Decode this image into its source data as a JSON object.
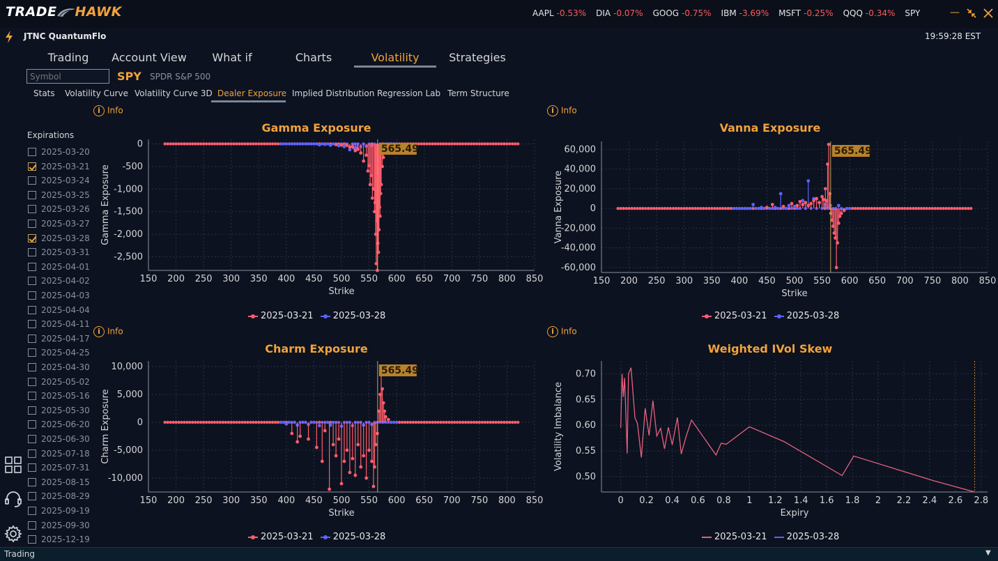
{
  "app": {
    "logo_part1": "TRADE",
    "logo_part2": "HAWK",
    "account": "JTNC QuantumFlo",
    "clock": "19:59:28 EST",
    "colors": {
      "accent": "#f2a23a",
      "negative": "#ff5a5a",
      "series1": "#ff5c6c",
      "series2": "#5b63ff",
      "background": "#0c1220"
    }
  },
  "tickers": [
    {
      "symbol": "AAPL",
      "change": "-0.53%"
    },
    {
      "symbol": "DIA",
      "change": "-0.07%"
    },
    {
      "symbol": "GOOG",
      "change": "-0.75%"
    },
    {
      "symbol": "IBM",
      "change": "-3.69%"
    },
    {
      "symbol": "MSFT",
      "change": "-0.25%"
    },
    {
      "symbol": "QQQ",
      "change": "-0.34%"
    },
    {
      "symbol": "SPY",
      "change": ""
    }
  ],
  "main_tabs": [
    "Trading",
    "Account View",
    "What if",
    "Charts",
    "Volatility",
    "Strategies"
  ],
  "main_tab_active": "Volatility",
  "symbol_bar": {
    "placeholder": "Symbol",
    "ticker": "SPY",
    "name": "SPDR S&P 500"
  },
  "sub_tabs": [
    "Stats",
    "Volatility Curve",
    "Volatility Curve 3D",
    "Dealer Exposure",
    "Implied Distribution",
    "Regression Lab",
    "Term Structure"
  ],
  "sub_tab_active": "Dealer Exposure",
  "expirations": {
    "title": "Expirations",
    "items": [
      {
        "date": "2025-03-20",
        "checked": false
      },
      {
        "date": "2025-03-21",
        "checked": true
      },
      {
        "date": "2025-03-24",
        "checked": false
      },
      {
        "date": "2025-03-25",
        "checked": false
      },
      {
        "date": "2025-03-26",
        "checked": false
      },
      {
        "date": "2025-03-27",
        "checked": false
      },
      {
        "date": "2025-03-28",
        "checked": true
      },
      {
        "date": "2025-03-31",
        "checked": false
      },
      {
        "date": "2025-04-01",
        "checked": false
      },
      {
        "date": "2025-04-02",
        "checked": false
      },
      {
        "date": "2025-04-03",
        "checked": false
      },
      {
        "date": "2025-04-04",
        "checked": false
      },
      {
        "date": "2025-04-11",
        "checked": false
      },
      {
        "date": "2025-04-17",
        "checked": false
      },
      {
        "date": "2025-04-25",
        "checked": false
      },
      {
        "date": "2025-04-30",
        "checked": false
      },
      {
        "date": "2025-05-02",
        "checked": false
      },
      {
        "date": "2025-05-16",
        "checked": false
      },
      {
        "date": "2025-05-30",
        "checked": false
      },
      {
        "date": "2025-06-20",
        "checked": false
      },
      {
        "date": "2025-06-30",
        "checked": false
      },
      {
        "date": "2025-07-18",
        "checked": false
      },
      {
        "date": "2025-07-31",
        "checked": false
      },
      {
        "date": "2025-08-15",
        "checked": false
      },
      {
        "date": "2025-08-29",
        "checked": false
      },
      {
        "date": "2025-09-19",
        "checked": false
      },
      {
        "date": "2025-09-30",
        "checked": false
      },
      {
        "date": "2025-12-19",
        "checked": false
      }
    ]
  },
  "info_label": "Info",
  "status_bar": {
    "text": "Trading"
  },
  "chart_data": [
    {
      "type": "scatter",
      "title": "Gamma Exposure",
      "xlabel": "Strike",
      "ylabel": "Gamma Exposure",
      "xlim": [
        150,
        850
      ],
      "ylim": [
        -2800,
        100
      ],
      "xticks": [
        150,
        200,
        250,
        300,
        350,
        400,
        450,
        500,
        550,
        600,
        650,
        700,
        750,
        800,
        850
      ],
      "yticks": [
        0,
        -500,
        -1000,
        -1500,
        -2000,
        -2500
      ],
      "ytick_labels": [
        "0",
        "-500",
        "-1,000",
        "-1,500",
        "-2,000",
        "-2,500"
      ],
      "spot_label": "565.49",
      "spot": 565.49,
      "series": [
        {
          "name": "2025-03-21",
          "color": "#ff5c6c",
          "spikes": [
            [
              490,
              -15
            ],
            [
              500,
              -25
            ],
            [
              510,
              -30
            ],
            [
              515,
              -70
            ],
            [
              520,
              -60
            ],
            [
              525,
              -150
            ],
            [
              530,
              -120
            ],
            [
              535,
              -200
            ],
            [
              540,
              -380
            ],
            [
              545,
              -250
            ],
            [
              548,
              -600
            ],
            [
              550,
              -480
            ],
            [
              552,
              -900
            ],
            [
              554,
              -700
            ],
            [
              556,
              -1200
            ],
            [
              558,
              -1000
            ],
            [
              560,
              -1500
            ],
            [
              561,
              -1300
            ],
            [
              562,
              -2000
            ],
            [
              563,
              -2650
            ],
            [
              564,
              -1700
            ],
            [
              565,
              -2800
            ],
            [
              566,
              -2200
            ],
            [
              567,
              -2400
            ],
            [
              568,
              -1900
            ],
            [
              569,
              -1400
            ],
            [
              570,
              -1600
            ],
            [
              571,
              -1100
            ],
            [
              572,
              -900
            ],
            [
              574,
              -500
            ],
            [
              576,
              -300
            ],
            [
              578,
              -150
            ],
            [
              580,
              -80
            ]
          ]
        },
        {
          "name": "2025-03-28",
          "color": "#5b63ff",
          "spikes": [
            [
              460,
              -20
            ],
            [
              470,
              -10
            ],
            [
              480,
              -30
            ],
            [
              495,
              -40
            ],
            [
              505,
              -60
            ],
            [
              515,
              -130
            ],
            [
              522,
              -90
            ],
            [
              528,
              -80
            ],
            [
              535,
              -60
            ],
            [
              545,
              -50
            ],
            [
              555,
              -40
            ],
            [
              565,
              -20
            ],
            [
              575,
              -20
            ]
          ]
        }
      ]
    },
    {
      "type": "scatter",
      "title": "Vanna Exposure",
      "xlabel": "Strike",
      "ylabel": "Vanna Exposure",
      "xlim": [
        150,
        850
      ],
      "ylim": [
        -65000,
        68000
      ],
      "xticks": [
        150,
        200,
        250,
        300,
        350,
        400,
        450,
        500,
        550,
        600,
        650,
        700,
        750,
        800,
        850
      ],
      "yticks": [
        60000,
        40000,
        20000,
        0,
        -20000,
        -40000,
        -60000
      ],
      "ytick_labels": [
        "60,000",
        "40,000",
        "20,000",
        "0",
        "-20,000",
        "-40,000",
        "-60,000"
      ],
      "spot_label": "565.49",
      "spot": 565.49,
      "series": [
        {
          "name": "2025-03-21",
          "color": "#ff5c6c",
          "spikes": [
            [
              450,
              1000
            ],
            [
              460,
              4000
            ],
            [
              480,
              2000
            ],
            [
              495,
              5000
            ],
            [
              505,
              3000
            ],
            [
              510,
              7000
            ],
            [
              515,
              4000
            ],
            [
              520,
              6000
            ],
            [
              525,
              3000
            ],
            [
              530,
              5000
            ],
            [
              535,
              8000
            ],
            [
              540,
              10000
            ],
            [
              545,
              6000
            ],
            [
              550,
              12000
            ],
            [
              553,
              9000
            ],
            [
              556,
              20000
            ],
            [
              558,
              8000
            ],
            [
              560,
              45000
            ],
            [
              562,
              65000
            ],
            [
              564,
              15000
            ],
            [
              566,
              -5000
            ],
            [
              568,
              -12000
            ],
            [
              570,
              -18000
            ],
            [
              572,
              -25000
            ],
            [
              574,
              -30000
            ],
            [
              576,
              -60000
            ],
            [
              578,
              -35000
            ],
            [
              580,
              -15000
            ],
            [
              582,
              -8000
            ],
            [
              585,
              -5000
            ],
            [
              590,
              -2000
            ]
          ]
        },
        {
          "name": "2025-03-28",
          "color": "#5b63ff",
          "spikes": [
            [
              425,
              4000
            ],
            [
              440,
              1000
            ],
            [
              465,
              1000
            ],
            [
              475,
              15000
            ],
            [
              490,
              3000
            ],
            [
              500,
              2000
            ],
            [
              515,
              8000
            ],
            [
              525,
              28000
            ],
            [
              535,
              10000
            ],
            [
              545,
              6000
            ],
            [
              555,
              4000
            ],
            [
              565,
              3000
            ],
            [
              580,
              3000
            ],
            [
              590,
              -1000
            ]
          ]
        }
      ]
    },
    {
      "type": "scatter",
      "title": "Charm Exposure",
      "xlabel": "Strike",
      "ylabel": "Charm Exposure",
      "xlim": [
        150,
        850
      ],
      "ylim": [
        -12500,
        11000
      ],
      "xticks": [
        150,
        200,
        250,
        300,
        350,
        400,
        450,
        500,
        550,
        600,
        650,
        700,
        750,
        800,
        850
      ],
      "yticks": [
        10000,
        5000,
        0,
        -5000,
        -10000
      ],
      "ytick_labels": [
        "10,000",
        "5,000",
        "0",
        "-5,000",
        "-10,000"
      ],
      "spot_label": "565.49",
      "spot": 565.49,
      "series": [
        {
          "name": "2025-03-21",
          "color": "#ff5c6c",
          "spikes": [
            [
              410,
              -2000
            ],
            [
              420,
              -3500
            ],
            [
              425,
              -2500
            ],
            [
              440,
              -3000
            ],
            [
              455,
              -4500
            ],
            [
              465,
              -7000
            ],
            [
              470,
              -1500
            ],
            [
              478,
              -12000
            ],
            [
              485,
              -4000
            ],
            [
              490,
              -6000
            ],
            [
              495,
              -3000
            ],
            [
              500,
              -11000
            ],
            [
              505,
              -7000
            ],
            [
              510,
              -5000
            ],
            [
              515,
              -9000
            ],
            [
              520,
              -6500
            ],
            [
              525,
              -9500
            ],
            [
              530,
              -4000
            ],
            [
              535,
              -8000
            ],
            [
              540,
              -6000
            ],
            [
              545,
              -10000
            ],
            [
              550,
              -5000
            ],
            [
              555,
              -7000
            ],
            [
              558,
              -11500
            ],
            [
              560,
              -8000
            ],
            [
              562,
              -4000
            ],
            [
              565,
              -2000
            ],
            [
              568,
              2000
            ],
            [
              570,
              5000
            ],
            [
              572,
              9500
            ],
            [
              574,
              6000
            ],
            [
              576,
              3500
            ],
            [
              578,
              2000
            ],
            [
              580,
              1000
            ],
            [
              585,
              500
            ]
          ]
        },
        {
          "name": "2025-03-28",
          "color": "#5b63ff",
          "spikes": [
            [
              400,
              -300
            ],
            [
              420,
              -500
            ],
            [
              440,
              -400
            ],
            [
              460,
              -600
            ],
            [
              480,
              -500
            ],
            [
              500,
              -700
            ],
            [
              520,
              -600
            ],
            [
              540,
              -500
            ],
            [
              555,
              -400
            ]
          ]
        }
      ]
    },
    {
      "type": "line",
      "title": "Weighted IVol Skew",
      "xlabel": "Expiry",
      "ylabel": "Volatility Imbalance",
      "xlim": [
        -0.15,
        2.85
      ],
      "ylim": [
        0.47,
        0.725
      ],
      "xticks": [
        0.0,
        0.2,
        0.4,
        0.6,
        0.8,
        1.0,
        1.2,
        1.4,
        1.6,
        1.8,
        2.0,
        2.2,
        2.4,
        2.6,
        2.8
      ],
      "yticks": [
        0.7,
        0.65,
        0.6,
        0.55,
        0.5
      ],
      "ytick_labels": [
        "0.70",
        "0.65",
        "0.60",
        "0.55",
        "0.50"
      ],
      "marker_x": 2.75,
      "series": [
        {
          "name": "2025-03-21",
          "color": "#e8607e",
          "x": [
            0.0,
            0.01,
            0.02,
            0.03,
            0.04,
            0.05,
            0.06,
            0.08,
            0.11,
            0.13,
            0.16,
            0.19,
            0.22,
            0.25,
            0.28,
            0.31,
            0.34,
            0.37,
            0.4,
            0.44,
            0.47,
            0.51,
            0.55,
            0.74,
            0.78,
            0.82,
            1.0,
            1.27,
            1.72,
            1.81,
            2.43,
            2.75
          ],
          "y": [
            0.595,
            0.7,
            0.655,
            0.692,
            0.62,
            0.545,
            0.7,
            0.712,
            0.615,
            0.603,
            0.537,
            0.633,
            0.58,
            0.648,
            0.579,
            0.594,
            0.554,
            0.596,
            0.562,
            0.615,
            0.544,
            0.58,
            0.61,
            0.542,
            0.565,
            0.563,
            0.597,
            0.568,
            0.502,
            0.54,
            0.492,
            0.47
          ]
        },
        {
          "name": "2025-03-28",
          "color": "#5b63ff",
          "x": [],
          "y": []
        }
      ]
    }
  ]
}
